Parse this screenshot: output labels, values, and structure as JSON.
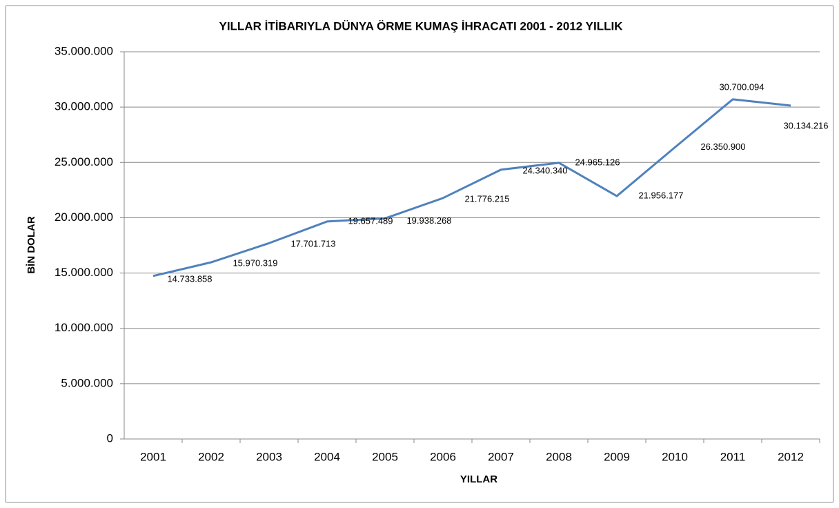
{
  "chart_data": {
    "type": "line",
    "title": "YILLAR İTİBARIYLA DÜNYA ÖRME KUMAŞ İHRACATI 2001 - 2012 YILLIK",
    "x_label": "YILLAR",
    "y_label": "BİN DOLAR",
    "categories": [
      "2001",
      "2002",
      "2003",
      "2004",
      "2005",
      "2006",
      "2007",
      "2008",
      "2009",
      "2010",
      "2011",
      "2012"
    ],
    "series": [
      {
        "name": "BİN DOLAR",
        "color": "#4f81bd",
        "values": [
          14733858,
          15970319,
          17701713,
          19657489,
          19938268,
          21776215,
          24340340,
          24965126,
          21956177,
          26350900,
          30700094,
          30134216
        ],
        "value_labels": [
          "14.733.858",
          "15.970.319",
          "17.701.713",
          "19.657.489",
          "19.938.268",
          "21.776.215",
          "24.340.340",
          "24.965.126",
          "21.956.177",
          "26.350.900",
          "30.700.094",
          "30.134.216"
        ]
      }
    ],
    "ylim": [
      0,
      35000000
    ],
    "yticks": [
      0,
      {
        "value": 5000000,
        "label": "5.000.000"
      },
      {
        "value": 10000000,
        "label": "10.000.000"
      },
      {
        "value": 15000000,
        "label": "15.000.000"
      },
      {
        "value": 20000000,
        "label": "20.000.000"
      },
      {
        "value": 25000000,
        "label": "25.000.000"
      },
      {
        "value": 30000000,
        "label": "30.000.000"
      },
      {
        "value": 35000000,
        "label": "35.000.000"
      }
    ],
    "grid": true
  }
}
